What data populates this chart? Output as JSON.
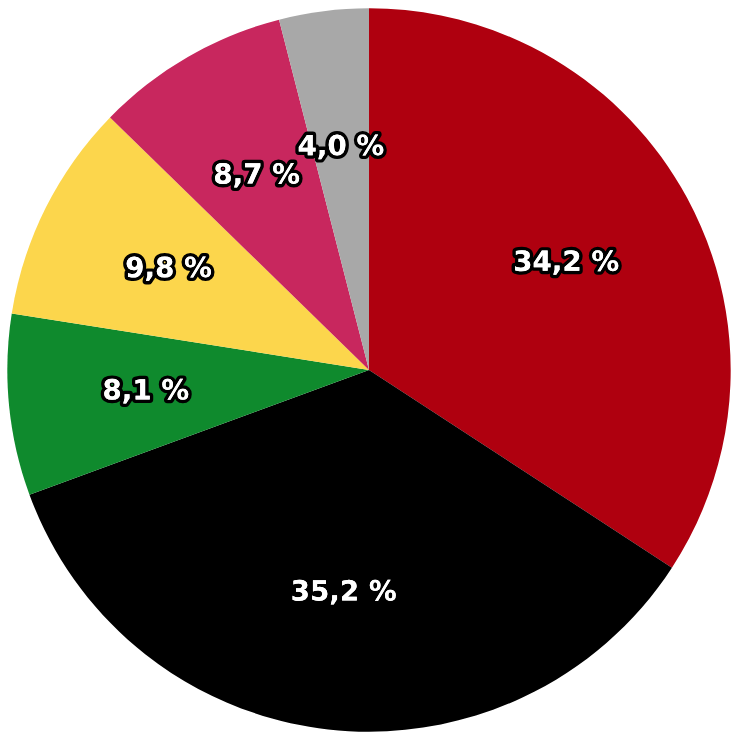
{
  "chart_data": {
    "type": "pie",
    "categories": [
      null,
      null,
      null,
      null,
      null,
      null
    ],
    "values": [
      34.2,
      35.2,
      8.1,
      9.8,
      8.7,
      4.0
    ],
    "colors": [
      "#af000f",
      "#000000",
      "#0f8a2d",
      "#fcd64c",
      "#c8275e",
      "#a8a8a8"
    ],
    "value_labels": [
      "34,2 %",
      "35,2 %",
      "8,1 %",
      "9,8 %",
      "8,7 %",
      "4,0 %"
    ]
  }
}
